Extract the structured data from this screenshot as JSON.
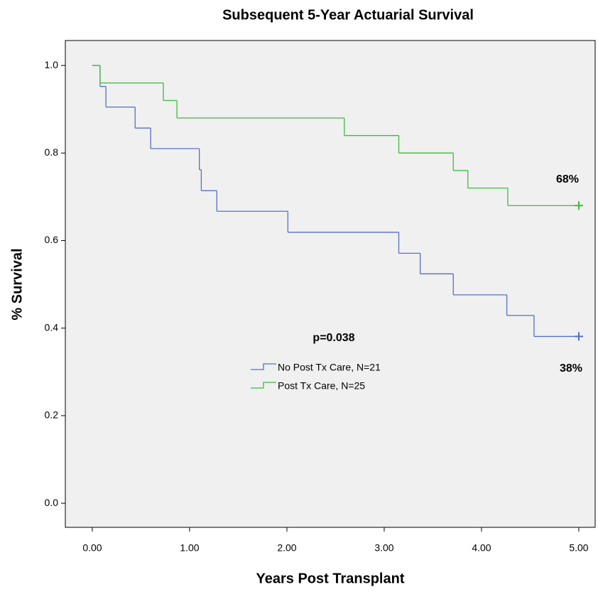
{
  "chart_data": {
    "type": "step",
    "title": "Subsequent 5-Year Actuarial Survival",
    "x_label": "Years Post Transplant",
    "y_label": "% Survival",
    "xlim": [
      -0.277,
      5.168
    ],
    "ylim": [
      -0.055,
      1.057
    ],
    "xticks": [
      {
        "value": 0,
        "label": "0.00"
      },
      {
        "value": 1,
        "label": "1.00"
      },
      {
        "value": 2,
        "label": "2.00"
      },
      {
        "value": 3,
        "label": "3.00"
      },
      {
        "value": 4,
        "label": "4.00"
      },
      {
        "value": 5,
        "label": "5.00"
      }
    ],
    "yticks": [
      {
        "value": 0,
        "label": "0.0"
      },
      {
        "value": 0.2,
        "label": "0.2"
      },
      {
        "value": 0.4,
        "label": "0.4"
      },
      {
        "value": 0.6,
        "label": "0.6"
      },
      {
        "value": 0.8,
        "label": "0.8"
      },
      {
        "value": 1,
        "label": "1.0"
      }
    ],
    "series": [
      {
        "name": "No Post Tx Care, N=21",
        "color": "#5470c6",
        "x": [
          0,
          0.08,
          0.14,
          0.44,
          0.6,
          1.1,
          1.12,
          1.28,
          2.01,
          3.15,
          3.37,
          3.71,
          4.26,
          4.54,
          5.0
        ],
        "values": [
          1,
          0.952,
          0.905,
          0.857,
          0.81,
          0.762,
          0.714,
          0.667,
          0.619,
          0.571,
          0.524,
          0.476,
          0.429,
          0.381,
          0.381
        ]
      },
      {
        "name": "Post Tx Care, N=25",
        "color": "#3dbb3d",
        "x": [
          0,
          0.08,
          0.73,
          0.87,
          2.59,
          3.15,
          3.71,
          3.86,
          4.27,
          5.0
        ],
        "values": [
          1,
          0.96,
          0.92,
          0.88,
          0.84,
          0.8,
          0.76,
          0.72,
          0.68,
          0.68
        ]
      }
    ],
    "annotations": [
      "68%",
      "38%",
      "p=0.038"
    ]
  }
}
